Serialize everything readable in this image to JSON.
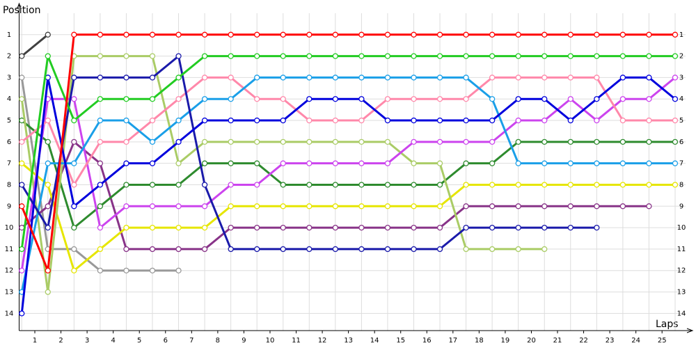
{
  "chart_data": {
    "type": "line",
    "y_title": "Position",
    "x_title": "Laps",
    "x": [
      0,
      1,
      2,
      3,
      4,
      5,
      6,
      7,
      8,
      9,
      10,
      11,
      12,
      13,
      14,
      15,
      16,
      17,
      18,
      19,
      20,
      21,
      22,
      23,
      24,
      25
    ],
    "xlim": [
      -0.1,
      25.4
    ],
    "xticks": [
      {
        "value": 0.5,
        "label": "1"
      },
      {
        "value": 1.5,
        "label": "2"
      },
      {
        "value": 2.5,
        "label": "3"
      },
      {
        "value": 3.5,
        "label": "4"
      },
      {
        "value": 4.5,
        "label": "5"
      },
      {
        "value": 5.5,
        "label": "6"
      },
      {
        "value": 6.5,
        "label": "7"
      },
      {
        "value": 7.5,
        "label": "8"
      },
      {
        "value": 8.5,
        "label": "9"
      },
      {
        "value": 9.5,
        "label": "10"
      },
      {
        "value": 10.5,
        "label": "11"
      },
      {
        "value": 11.5,
        "label": "12"
      },
      {
        "value": 12.5,
        "label": "13"
      },
      {
        "value": 13.5,
        "label": "14"
      },
      {
        "value": 14.5,
        "label": "15"
      },
      {
        "value": 15.5,
        "label": "16"
      },
      {
        "value": 16.5,
        "label": "17"
      },
      {
        "value": 17.5,
        "label": "18"
      },
      {
        "value": 18.5,
        "label": "19"
      },
      {
        "value": 19.5,
        "label": "20"
      },
      {
        "value": 20.5,
        "label": "21"
      },
      {
        "value": 21.5,
        "label": "22"
      },
      {
        "value": 22.5,
        "label": "23"
      },
      {
        "value": 23.5,
        "label": "24"
      },
      {
        "value": 24.5,
        "label": "25"
      }
    ],
    "ylim": [
      14.8,
      0
    ],
    "yticks": [
      1,
      2,
      3,
      4,
      5,
      6,
      7,
      8,
      9,
      10,
      11,
      12,
      13,
      14
    ],
    "grid": true,
    "series": [
      {
        "color": "#999999",
        "values": [
          3,
          11,
          11,
          12,
          12,
          12,
          12,
          null,
          null,
          null,
          null,
          null,
          null,
          null,
          null,
          null,
          null,
          null,
          null,
          null,
          null,
          null,
          null,
          null,
          null,
          null
        ]
      },
      {
        "color": "#883388",
        "values": [
          10,
          9,
          6,
          7,
          11,
          11,
          11,
          11,
          10,
          10,
          10,
          10,
          10,
          10,
          10,
          10,
          10,
          9,
          9,
          9,
          9,
          9,
          9,
          9,
          9,
          null
        ]
      },
      {
        "color": "#e6e600",
        "values": [
          7,
          8,
          12,
          11,
          10,
          10,
          10,
          10,
          9,
          9,
          9,
          9,
          9,
          9,
          9,
          9,
          9,
          8,
          8,
          8,
          8,
          8,
          8,
          8,
          8,
          8
        ]
      },
      {
        "color": "#2e8b2e",
        "values": [
          5,
          6,
          10,
          9,
          8,
          8,
          8,
          7,
          7,
          7,
          8,
          8,
          8,
          8,
          8,
          8,
          8,
          7,
          7,
          6,
          6,
          6,
          6,
          6,
          6,
          6
        ]
      },
      {
        "color": "#aacc66",
        "values": [
          4,
          13,
          2,
          2,
          2,
          2,
          7,
          6,
          6,
          6,
          6,
          6,
          6,
          6,
          6,
          7,
          7,
          11,
          11,
          11,
          11,
          null,
          null,
          null,
          null,
          null
        ]
      },
      {
        "color": "#cc44ee",
        "values": [
          12,
          4,
          4,
          10,
          9,
          9,
          9,
          9,
          8,
          8,
          7,
          7,
          7,
          7,
          7,
          6,
          6,
          6,
          6,
          5,
          5,
          4,
          5,
          4,
          4,
          3
        ]
      },
      {
        "color": "#ff88aa",
        "values": [
          6,
          5,
          8,
          6,
          6,
          5,
          4,
          3,
          3,
          4,
          4,
          5,
          5,
          5,
          4,
          4,
          4,
          4,
          3,
          3,
          3,
          3,
          3,
          5,
          5,
          5
        ]
      },
      {
        "color": "#1a9fe8",
        "values": [
          13,
          7,
          7,
          5,
          5,
          6,
          5,
          4,
          4,
          3,
          3,
          3,
          3,
          3,
          3,
          3,
          3,
          3,
          4,
          7,
          7,
          7,
          7,
          7,
          7,
          7
        ]
      },
      {
        "color": "#1a1aaa",
        "values": [
          8,
          10,
          3,
          3,
          3,
          3,
          2,
          8,
          11,
          11,
          11,
          11,
          11,
          11,
          11,
          11,
          11,
          10,
          10,
          10,
          10,
          10,
          10,
          null,
          null,
          null
        ]
      },
      {
        "color": "#0000dd",
        "values": [
          14,
          3,
          9,
          8,
          7,
          7,
          6,
          5,
          5,
          5,
          5,
          4,
          4,
          4,
          5,
          5,
          5,
          5,
          5,
          4,
          4,
          5,
          4,
          3,
          3,
          4
        ]
      },
      {
        "color": "#22cc22",
        "values": [
          11,
          2,
          5,
          4,
          4,
          4,
          3,
          2,
          2,
          2,
          2,
          2,
          2,
          2,
          2,
          2,
          2,
          2,
          2,
          2,
          2,
          2,
          2,
          2,
          2,
          2
        ]
      },
      {
        "color": "#404040",
        "values": [
          2,
          1,
          null,
          null,
          null,
          null,
          null,
          null,
          null,
          null,
          null,
          null,
          null,
          null,
          null,
          null,
          null,
          null,
          null,
          null,
          null,
          null,
          null,
          null,
          null,
          null
        ]
      },
      {
        "color": "#ff0000",
        "values": [
          9,
          12,
          1,
          1,
          1,
          1,
          1,
          1,
          1,
          1,
          1,
          1,
          1,
          1,
          1,
          1,
          1,
          1,
          1,
          1,
          1,
          1,
          1,
          1,
          1,
          1
        ]
      }
    ]
  }
}
